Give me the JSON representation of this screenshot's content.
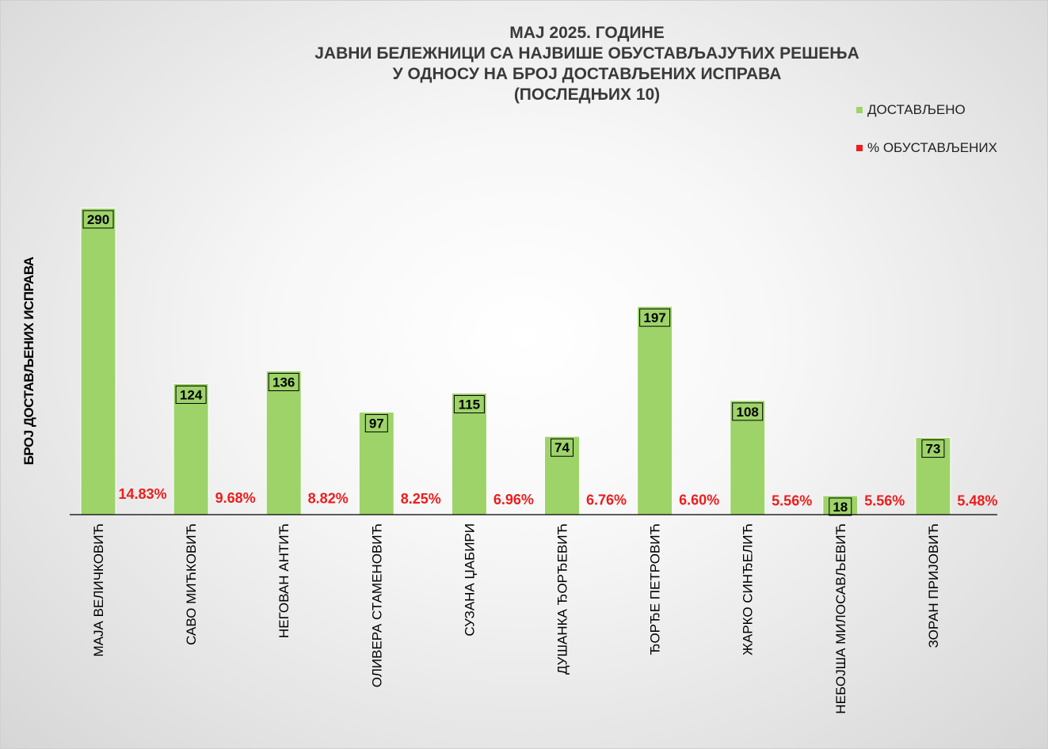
{
  "chart_data": {
    "type": "bar",
    "title_lines": [
      "МАЈ 2025. ГОДИНЕ",
      "ЈАВНИ БЕЛЕЖНИЦИ СА НАЈВИШЕ ОБУСТАВЉАЈУЋИХ РЕШЕЊА",
      "У ОДНОСУ НА БРОЈ ДОСТАВЉЕНИХ ИСПРАВА",
      "(ПОСЛЕДЊИХ 10)"
    ],
    "ylabel": "БРОЈ ДОСТАВЉЕНИХ ИСПРАВА",
    "xlabel": "",
    "ylim": [
      0,
      300
    ],
    "grid": false,
    "legend_position": "top-right",
    "categories": [
      "МАЈА ВЕЛИЧКОВИЋ",
      "САВО МИЋКОВИЋ",
      "НЕГОВАН АНТИЋ",
      "ОЛИВЕРА СТАМЕНОВИЋ",
      "СУЗАНА ЏАБИРИ",
      "ДУШАНКА ЂОРЂЕВИЋ",
      "ЂОРЂЕ ПЕТРОВИЋ",
      "ЖАРКО СИНЂЕЛИЋ",
      "НЕБОЈША МИЛОСАВЉЕВИЋ",
      "ЗОРАН ПРИЈОВИЋ"
    ],
    "series": [
      {
        "name": "ДОСТАВЉЕНО",
        "color": "#9ed36a",
        "values": [
          290,
          124,
          136,
          97,
          115,
          74,
          197,
          108,
          18,
          73
        ],
        "labels": [
          "290",
          "124",
          "136",
          "97",
          "115",
          "74",
          "197",
          "108",
          "18",
          "73"
        ]
      },
      {
        "name": "% ОБУСТАВЉЕНИХ",
        "color": "#ee1c1c",
        "values": [
          14.83,
          9.68,
          8.82,
          8.25,
          6.96,
          6.76,
          6.6,
          5.56,
          5.56,
          5.48
        ],
        "labels": [
          "14.83%",
          "9.68%",
          "8.82%",
          "8.25%",
          "6.96%",
          "6.76%",
          "6.60%",
          "5.56%",
          "5.56%",
          "5.48%"
        ]
      }
    ]
  }
}
